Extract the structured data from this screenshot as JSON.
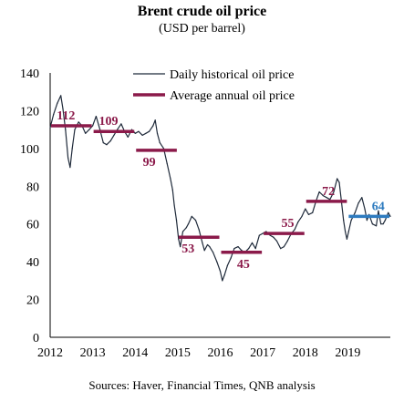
{
  "chart_data": {
    "type": "line",
    "title": "Brent crude oil price",
    "subtitle": "(USD per barrel)",
    "source": "Sources: Haver, Financial Times, QNB analysis",
    "xlabel": "",
    "ylabel": "",
    "xlim": [
      2012,
      2020
    ],
    "ylim": [
      0,
      140
    ],
    "x_ticks": [
      "2012",
      "2013",
      "2014",
      "2015",
      "2016",
      "2017",
      "2018",
      "2019"
    ],
    "y_ticks": [
      "0",
      "20",
      "40",
      "60",
      "80",
      "100",
      "120",
      "140"
    ],
    "grid": false,
    "legend": {
      "placement": "top-right",
      "entries": [
        "Daily historical oil price",
        "Average annual oil price"
      ]
    },
    "colors": {
      "daily": "#1f2a3a",
      "average": "#8b1a4a",
      "highlight": "#2e7bbf"
    },
    "series": [
      {
        "name": "Daily historical oil price",
        "points": [
          [
            2012.0,
            111
          ],
          [
            2012.08,
            118
          ],
          [
            2012.17,
            124
          ],
          [
            2012.25,
            128
          ],
          [
            2012.3,
            121
          ],
          [
            2012.36,
            110
          ],
          [
            2012.42,
            95
          ],
          [
            2012.47,
            90
          ],
          [
            2012.52,
            100
          ],
          [
            2012.58,
            110
          ],
          [
            2012.67,
            114
          ],
          [
            2012.75,
            112
          ],
          [
            2012.83,
            108
          ],
          [
            2012.92,
            110
          ],
          [
            2013.0,
            112
          ],
          [
            2013.08,
            117
          ],
          [
            2013.17,
            110
          ],
          [
            2013.25,
            103
          ],
          [
            2013.33,
            102
          ],
          [
            2013.42,
            104
          ],
          [
            2013.5,
            107
          ],
          [
            2013.58,
            110
          ],
          [
            2013.67,
            113
          ],
          [
            2013.75,
            109
          ],
          [
            2013.83,
            106
          ],
          [
            2013.92,
            110
          ],
          [
            2014.0,
            108
          ],
          [
            2014.08,
            109
          ],
          [
            2014.17,
            107
          ],
          [
            2014.25,
            108
          ],
          [
            2014.33,
            109
          ],
          [
            2014.42,
            112
          ],
          [
            2014.47,
            115
          ],
          [
            2014.52,
            108
          ],
          [
            2014.58,
            103
          ],
          [
            2014.67,
            100
          ],
          [
            2014.75,
            92
          ],
          [
            2014.83,
            84
          ],
          [
            2014.88,
            78
          ],
          [
            2014.92,
            70
          ],
          [
            2014.97,
            62
          ],
          [
            2015.02,
            52
          ],
          [
            2015.06,
            48
          ],
          [
            2015.12,
            56
          ],
          [
            2015.2,
            58
          ],
          [
            2015.25,
            60
          ],
          [
            2015.33,
            64
          ],
          [
            2015.42,
            62
          ],
          [
            2015.5,
            57
          ],
          [
            2015.58,
            50
          ],
          [
            2015.63,
            46
          ],
          [
            2015.7,
            49
          ],
          [
            2015.75,
            48
          ],
          [
            2015.83,
            45
          ],
          [
            2015.92,
            40
          ],
          [
            2016.0,
            35
          ],
          [
            2016.05,
            30
          ],
          [
            2016.1,
            33
          ],
          [
            2016.17,
            38
          ],
          [
            2016.25,
            42
          ],
          [
            2016.33,
            47
          ],
          [
            2016.42,
            48
          ],
          [
            2016.5,
            46
          ],
          [
            2016.58,
            45
          ],
          [
            2016.67,
            47
          ],
          [
            2016.75,
            50
          ],
          [
            2016.83,
            47
          ],
          [
            2016.92,
            54
          ],
          [
            2017.0,
            55
          ],
          [
            2017.08,
            56
          ],
          [
            2017.17,
            54
          ],
          [
            2017.25,
            53
          ],
          [
            2017.33,
            51
          ],
          [
            2017.42,
            47
          ],
          [
            2017.5,
            48
          ],
          [
            2017.58,
            51
          ],
          [
            2017.67,
            55
          ],
          [
            2017.75,
            57
          ],
          [
            2017.83,
            61
          ],
          [
            2017.92,
            64
          ],
          [
            2018.0,
            68
          ],
          [
            2018.08,
            65
          ],
          [
            2018.17,
            66
          ],
          [
            2018.25,
            72
          ],
          [
            2018.33,
            77
          ],
          [
            2018.42,
            75
          ],
          [
            2018.5,
            74
          ],
          [
            2018.58,
            73
          ],
          [
            2018.67,
            77
          ],
          [
            2018.75,
            84
          ],
          [
            2018.8,
            82
          ],
          [
            2018.85,
            72
          ],
          [
            2018.9,
            62
          ],
          [
            2018.94,
            56
          ],
          [
            2018.98,
            52
          ],
          [
            2019.02,
            56
          ],
          [
            2019.08,
            62
          ],
          [
            2019.17,
            66
          ],
          [
            2019.25,
            71
          ],
          [
            2019.33,
            74
          ],
          [
            2019.4,
            68
          ],
          [
            2019.45,
            62
          ],
          [
            2019.5,
            65
          ],
          [
            2019.58,
            60
          ],
          [
            2019.67,
            59
          ],
          [
            2019.72,
            67
          ],
          [
            2019.78,
            60
          ],
          [
            2019.83,
            60
          ],
          [
            2019.88,
            62
          ],
          [
            2019.95,
            66
          ],
          [
            2020.0,
            64
          ]
        ]
      },
      {
        "name": "Average annual oil price",
        "segments": [
          {
            "x0": 2012,
            "x1": 2013,
            "value": 112,
            "label": "112"
          },
          {
            "x0": 2013,
            "x1": 2014,
            "value": 109,
            "label": "109"
          },
          {
            "x0": 2014,
            "x1": 2015,
            "value": 99,
            "label": "99"
          },
          {
            "x0": 2015,
            "x1": 2016,
            "value": 53,
            "label": "53"
          },
          {
            "x0": 2016,
            "x1": 2017,
            "value": 45,
            "label": "45"
          },
          {
            "x0": 2017,
            "x1": 2018,
            "value": 55,
            "label": "55"
          },
          {
            "x0": 2018,
            "x1": 2019,
            "value": 72,
            "label": "72"
          },
          {
            "x0": 2019,
            "x1": 2020,
            "value": 64,
            "label": "64",
            "highlight": true
          }
        ]
      }
    ]
  }
}
